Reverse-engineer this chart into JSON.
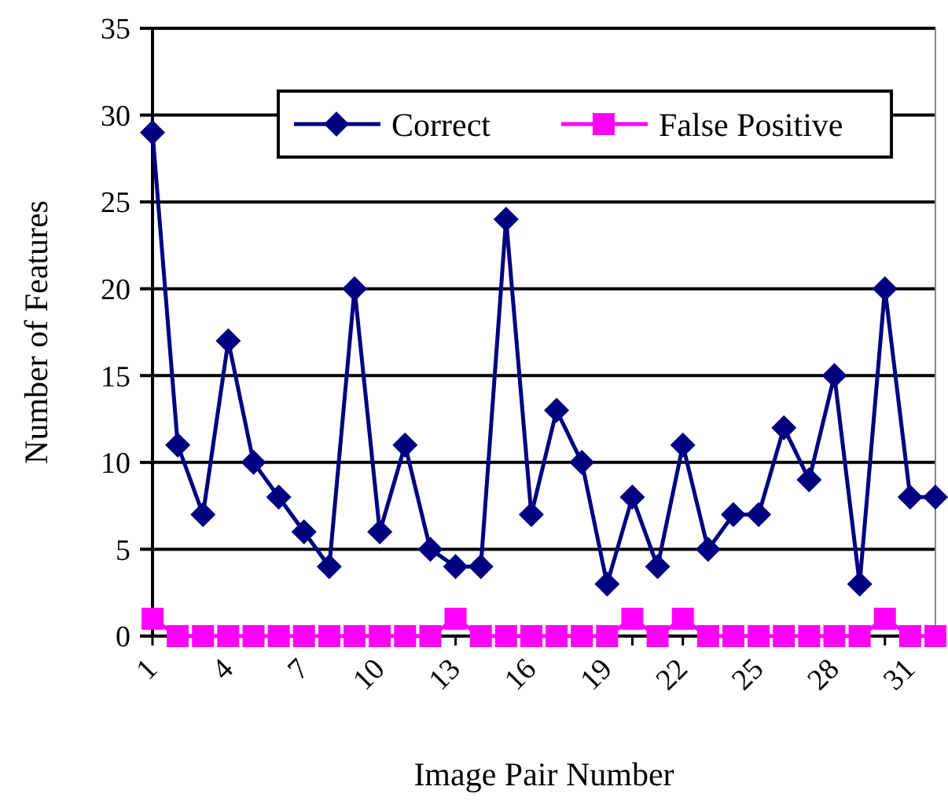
{
  "chart_data": {
    "type": "line",
    "xlabel": "Image Pair Number",
    "ylabel": "Number of Features",
    "categories": [
      "1",
      null,
      null,
      "4",
      null,
      null,
      "7",
      null,
      null,
      "10",
      null,
      null,
      "13",
      null,
      null,
      "16",
      null,
      null,
      "19",
      null,
      null,
      "22",
      null,
      null,
      "25",
      null,
      null,
      "28",
      null,
      null,
      "31",
      null
    ],
    "series": [
      {
        "name": "Correct",
        "color": "#000080",
        "marker": "diamond",
        "values": [
          29,
          11,
          7,
          17,
          10,
          8,
          6,
          4,
          20,
          6,
          11,
          5,
          4,
          4,
          24,
          7,
          13,
          10,
          3,
          8,
          4,
          11,
          5,
          7,
          7,
          12,
          9,
          15,
          3,
          20,
          8,
          8
        ]
      },
      {
        "name": "False Positive",
        "color": "#ff00ff",
        "marker": "square",
        "values": [
          1,
          0,
          0,
          0,
          0,
          0,
          0,
          0,
          0,
          0,
          0,
          0,
          1,
          0,
          0,
          0,
          0,
          0,
          0,
          1,
          0,
          1,
          0,
          0,
          0,
          0,
          0,
          0,
          0,
          1,
          0,
          0
        ]
      }
    ],
    "ylim": [
      0,
      35
    ],
    "yticks": [
      0,
      5,
      10,
      15,
      20,
      25,
      30,
      35
    ],
    "grid": "y",
    "legend": "top right"
  }
}
